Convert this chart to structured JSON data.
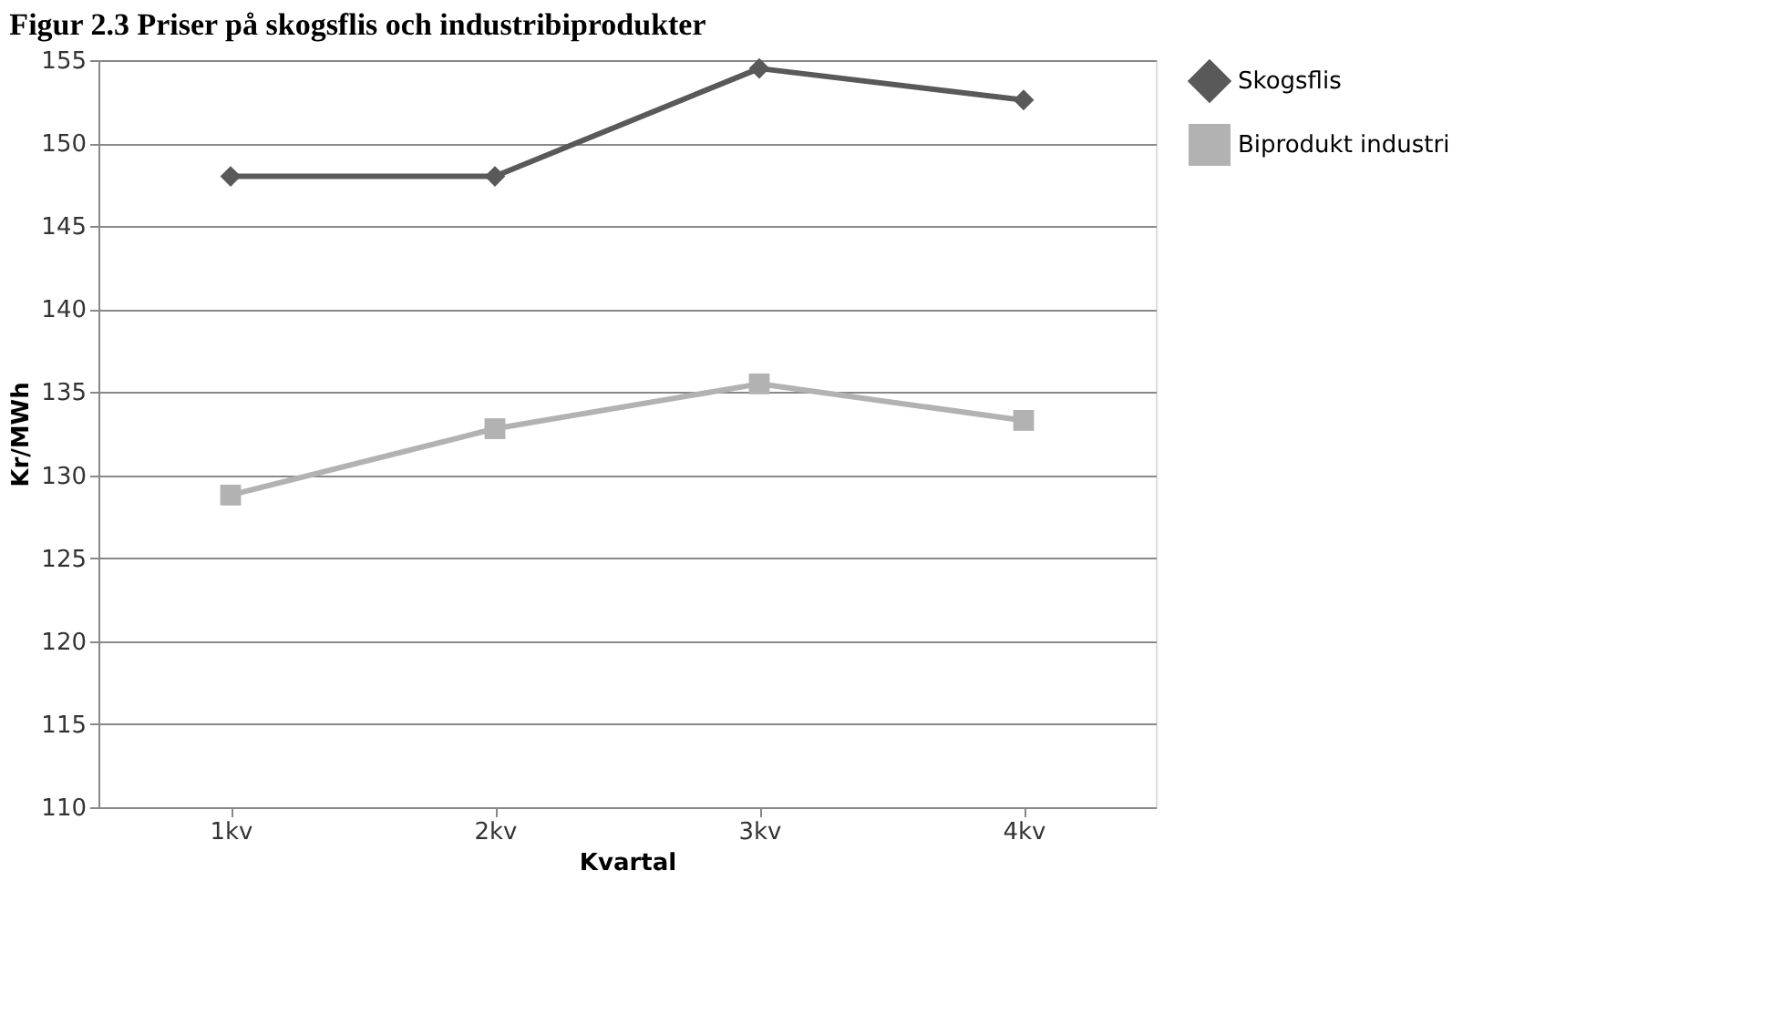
{
  "chart_data": {
    "type": "line",
    "title": "Figur 2.3 Priser på skogsflis och industribiprodukter",
    "xlabel": "Kvartal",
    "ylabel": "Kr/MWh",
    "categories": [
      "1kv",
      "2kv",
      "3kv",
      "4kv"
    ],
    "series": [
      {
        "name": "Skogsflis",
        "color": "#595959",
        "marker": "diamond",
        "values": [
          148,
          148,
          154.5,
          152.6
        ]
      },
      {
        "name": "Biprodukt industri",
        "color": "#b2b2b2",
        "marker": "square",
        "values": [
          128.8,
          132.8,
          135.5,
          133.3
        ]
      }
    ],
    "ylim": [
      110,
      155
    ],
    "yticks": [
      110,
      115,
      120,
      125,
      130,
      135,
      140,
      145,
      150,
      155
    ],
    "grid": "y",
    "legend": "right",
    "line_style": "solid"
  }
}
